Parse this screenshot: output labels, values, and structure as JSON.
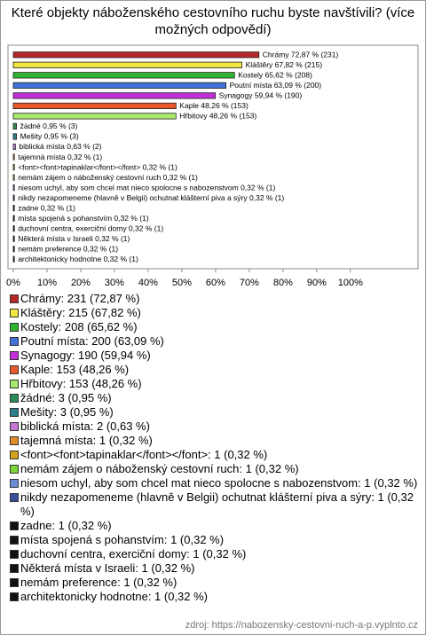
{
  "chart_data": {
    "type": "hbar",
    "title": "Které objekty náboženského cestovního ruchu byste navštívili? (více možných odpovědí)",
    "values": [
      72.87,
      67.82,
      65.62,
      63.09,
      59.94,
      48.26,
      48.26,
      0.95,
      0.95,
      0.63,
      0.32,
      0.32,
      0.32,
      0.32,
      0.32,
      0.32,
      0.32,
      0.32,
      0.32,
      0.32,
      0.32
    ],
    "value_labels": [
      "Chrámy 72,87 % (231)",
      "Kláštěry 67,82 % (215)",
      "Kostely 65,62 % (208)",
      "Poutní místa 63,09 % (200)",
      "Synagogy 59,94 % (190)",
      "Kaple 48,26 % (153)",
      "Hřbitovy 48,26 % (153)",
      "žádné 0,95 % (3)",
      "Mešity 0,95 % (3)",
      "biblická místa 0,63 % (2)",
      "tajemná místa 0,32 % (1)",
      "<font><font>tapinaklar</font></font> 0,32 % (1)",
      "nemám zájem o náboženský cestovní ruch 0,32 % (1)",
      "niesom uchyl, aby som chcel mat nieco spolocne s nabozenstvom 0,32 % (1)",
      "nikdy nezapomeneme (hlavně v Belgii) ochutnat klášterní piva a sýry 0,32 % (1)",
      "zadne 0,32 % (1)",
      "místa spojená s pohanstvím 0,32 % (1)",
      "duchovní centra, exerciční domy 0,32 % (1)",
      "Některá místa v Israeli 0,32 % (1)",
      "nemám preference 0,32 % (1)",
      "architektonicky hodnotne 0,32 % (1)"
    ],
    "legend_labels": [
      "Chrámy: 231 (72,87 %)",
      "Kláštěry: 215 (67,82 %)",
      "Kostely: 208 (65,62 %)",
      "Poutní místa: 200 (63,09 %)",
      "Synagogy: 190 (59,94 %)",
      "Kaple: 153 (48,26 %)",
      "Hřbitovy: 153 (48,26 %)",
      "žádné: 3 (0,95 %)",
      "Mešity: 3 (0,95 %)",
      "biblická místa: 2 (0,63 %)",
      "tajemná místa: 1 (0,32 %)",
      "<font><font>tapinaklar</font></font>: 1 (0,32 %)",
      "nemám zájem o náboženský cestovní ruch: 1 (0,32 %)",
      "niesom uchyl, aby som chcel mat nieco spolocne s nabozenstvom: 1 (0,32 %)",
      "nikdy nezapomeneme (hlavně v Belgii) ochutnat klášterní piva a sýry: 1 (0,32 %)",
      "zadne: 1 (0,32 %)",
      "místa spojená s pohanstvím: 1 (0,32 %)",
      "duchovní centra, exerciční domy: 1 (0,32 %)",
      "Některá místa v Israeli: 1 (0,32 %)",
      "nemám preference: 1 (0,32 %)",
      "architektonicky hodnotne: 1 (0,32 %)"
    ],
    "colors": [
      "#b8282a",
      "#f2e640",
      "#2fb52f",
      "#4070d8",
      "#c22fd6",
      "#e8582a",
      "#a8e86c",
      "#2e8b57",
      "#2a7f8a",
      "#c47ad4",
      "#e08a2a",
      "#d4a017",
      "#7bd43a",
      "#6b8fd4",
      "#3a4f9a",
      "#111111",
      "#111111",
      "#111111",
      "#111111",
      "#111111",
      "#111111"
    ],
    "xlim": [
      0,
      119
    ],
    "xticks": [
      {
        "value": 0,
        "label": "0%"
      },
      {
        "value": 10,
        "label": "10%"
      },
      {
        "value": 20,
        "label": "20%"
      },
      {
        "value": 30,
        "label": "30%"
      },
      {
        "value": 40,
        "label": "40%"
      },
      {
        "value": 50,
        "label": "50%"
      },
      {
        "value": 60,
        "label": "60%"
      },
      {
        "value": 70,
        "label": "70%"
      },
      {
        "value": 80,
        "label": "80%"
      },
      {
        "value": 90,
        "label": "90%"
      },
      {
        "value": 100,
        "label": "100%"
      }
    ],
    "grid": false,
    "source": "zdroj: https://nabozensky-cestovni-ruch-a-p.vyplnto.cz"
  }
}
